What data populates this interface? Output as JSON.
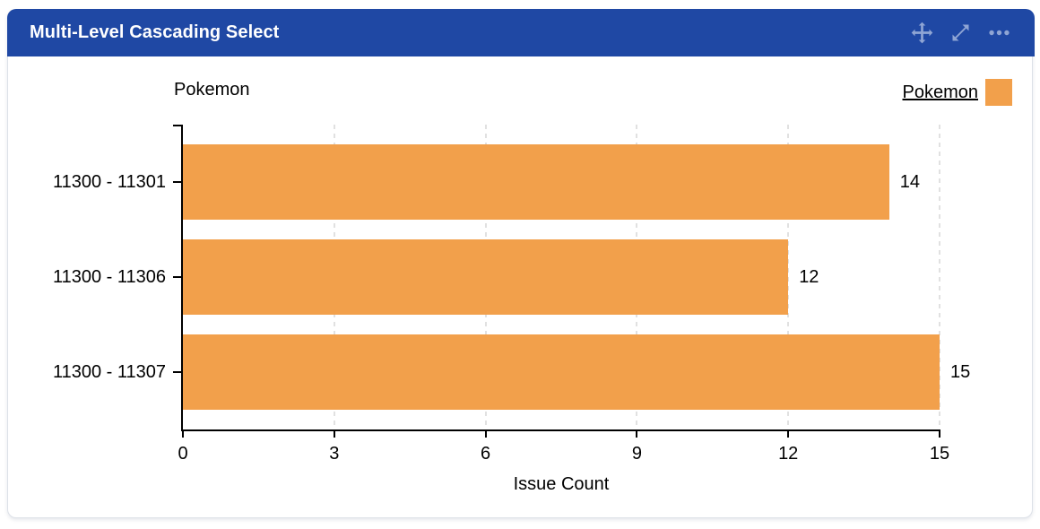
{
  "header": {
    "title": "Multi-Level Cascading Select",
    "bg_color": "#1F48A4",
    "icon_color": "#8FA5D4",
    "icons": [
      "move-icon",
      "expand-icon",
      "more-options-icon"
    ]
  },
  "chart_data": {
    "type": "bar",
    "orientation": "horizontal",
    "axis_title": "Pokemon",
    "legend": {
      "label": "Pokemon",
      "position": "top-right",
      "underlined": true
    },
    "categories": [
      "11300 - 11301",
      "11300 - 11306",
      "11300 - 11307"
    ],
    "series": [
      {
        "name": "Pokemon",
        "values": [
          14,
          12,
          15
        ],
        "color": "#F2A04B"
      }
    ],
    "data_labels": [
      "14",
      "12",
      "15"
    ],
    "xlabel": "Issue Count",
    "xlim": [
      0,
      15
    ],
    "xticks": [
      0,
      3,
      6,
      9,
      12,
      15
    ],
    "grid": {
      "show": true,
      "style": "dashed",
      "color": "#E1E1E1"
    },
    "axis_color": "#000000",
    "text_color": "#000000"
  }
}
